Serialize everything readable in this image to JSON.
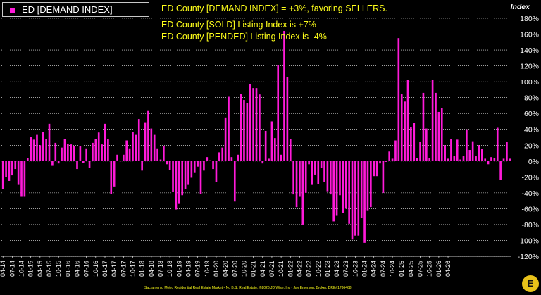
{
  "chart_data": {
    "type": "bar",
    "legend": {
      "label": "ED [DEMAND INDEX]",
      "color": "#ff1ad9",
      "placement": "top-left"
    },
    "annotations": [
      "ED County [DEMAND INDEX] = +3%, favoring SELLERS.",
      "ED County [SOLD] Listing Index is +7%",
      "ED County [PENDED] Listing Index is -4%"
    ],
    "ylabel": "Index",
    "ylim": [
      -120,
      180
    ],
    "y_ticks": [
      "180%",
      "160%",
      "140%",
      "120%",
      "100%",
      "80%",
      "60%",
      "40%",
      "20%",
      "0%",
      "-20%",
      "-40%",
      "-60%",
      "-80%",
      "-100%",
      "-120%"
    ],
    "y_tick_values": [
      180,
      160,
      140,
      120,
      100,
      80,
      60,
      40,
      20,
      0,
      -20,
      -40,
      -60,
      -80,
      -100,
      -120
    ],
    "x_ticks": [
      "04-14",
      "07-14",
      "10-14",
      "01-15",
      "04-15",
      "07-15",
      "10-15",
      "01-16",
      "04-16",
      "07-16",
      "10-16",
      "01-17",
      "04-17",
      "07-17",
      "10-17",
      "01-18",
      "04-18",
      "07-18",
      "10-18",
      "01-19",
      "04-19",
      "07-19",
      "10-19",
      "01-20",
      "04-20",
      "07-20",
      "10-20",
      "01-21",
      "04-21",
      "07-21",
      "10-21",
      "01-22",
      "04-22",
      "07-22",
      "10-22",
      "01-23",
      "04-23",
      "07-23",
      "10-23",
      "01-24",
      "04-24",
      "07-24",
      "10-24",
      "01-25",
      "04-25",
      "07-25",
      "10-25",
      "01-26",
      "04-26"
    ],
    "start_month": "2014-04",
    "values": [
      -35,
      -20,
      -25,
      -18,
      -10,
      -30,
      -45,
      -45,
      4,
      30,
      27,
      33,
      20,
      37,
      28,
      47,
      -6,
      23,
      -3,
      17,
      28,
      22,
      21,
      19,
      -10,
      19,
      -2,
      16,
      -9,
      23,
      28,
      36,
      21,
      47,
      28,
      -41,
      -32,
      8,
      0,
      8,
      26,
      16,
      37,
      33,
      53,
      -12,
      49,
      64,
      41,
      33,
      16,
      2,
      19,
      -4,
      -11,
      -39,
      -61,
      -54,
      -43,
      -35,
      -30,
      -21,
      -15,
      -7,
      -41,
      -12,
      5,
      1,
      -10,
      -26,
      11,
      17,
      55,
      81,
      5,
      -51,
      8,
      85,
      77,
      73,
      97,
      92,
      92,
      84,
      -3,
      38,
      3,
      50,
      29,
      121,
      8,
      164,
      106,
      28,
      -42,
      -58,
      -45,
      -80,
      -40,
      -4,
      -30,
      -17,
      -29,
      -9,
      -26,
      -38,
      -42,
      -76,
      -69,
      -43,
      -65,
      -60,
      -79,
      -99,
      -94,
      -94,
      -72,
      -103,
      -62,
      -58,
      -19,
      -19,
      -3,
      -40,
      -1,
      12,
      3,
      26,
      155,
      85,
      75,
      102,
      43,
      48,
      4,
      24,
      86,
      41,
      4,
      102,
      86,
      62,
      67,
      20,
      3,
      28,
      6,
      27,
      2,
      6,
      40,
      14,
      25,
      6,
      20,
      15,
      3,
      -4,
      5,
      4,
      42,
      -24,
      3,
      24,
      3
    ]
  },
  "footer": "Sacramento Metro Residential Real Estate Market - No B.S. Real Estate, ©2026 JD Wise, Inc - Jay Emerson, Broker, DRE#1786468",
  "logo_letter": "E"
}
